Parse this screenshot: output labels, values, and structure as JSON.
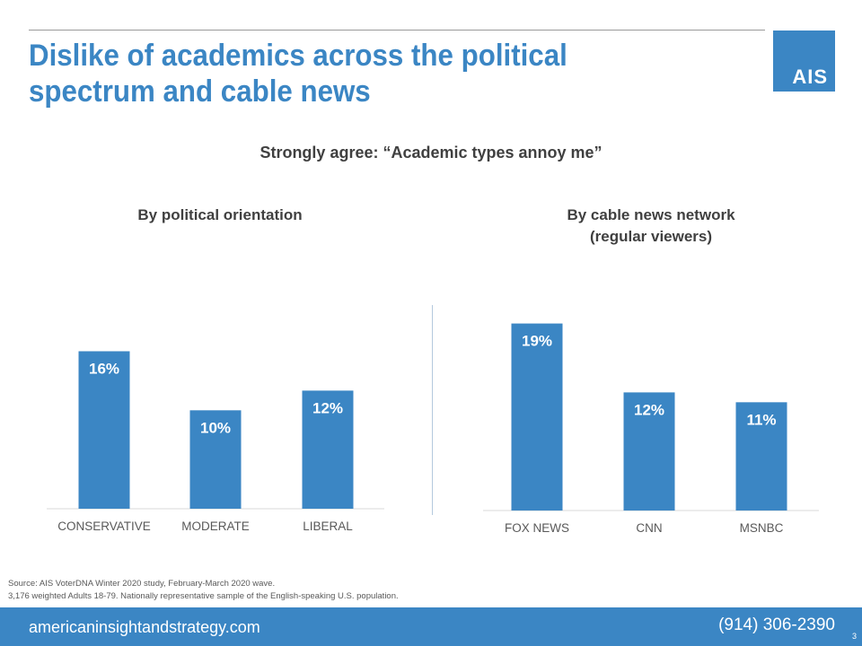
{
  "header": {
    "title_line1": "Dislike of academics across the political",
    "title_line2": "spectrum and cable news",
    "logo_text": "AIS"
  },
  "colors": {
    "accent": "#3b86c4",
    "text": "#404040",
    "axis": "#d9d9d9"
  },
  "chart_data": {
    "title": "Strongly agree: “Academic types annoy me”",
    "charts": [
      {
        "type": "bar",
        "title_line1": "By political orientation",
        "title_line2": "",
        "categories": [
          "CONSERVATIVE",
          "MODERATE",
          "LIBERAL"
        ],
        "values": [
          16,
          10,
          12
        ],
        "labels": [
          "16%",
          "10%",
          "12%"
        ],
        "ylim": [
          0,
          24
        ]
      },
      {
        "type": "bar",
        "title_line1": "By cable news network",
        "title_line2": "(regular viewers)",
        "categories": [
          "FOX NEWS",
          "CNN",
          "MSNBC"
        ],
        "values": [
          19,
          12,
          11
        ],
        "labels": [
          "19%",
          "12%",
          "11%"
        ],
        "ylim": [
          0,
          24
        ]
      }
    ]
  },
  "source": {
    "line1": "Source: AIS VoterDNA Winter 2020 study, February-March 2020 wave.",
    "line2": "3,176 weighted Adults 18-79. Nationally representative sample of the English-speaking U.S. population."
  },
  "footer": {
    "website": "americaninsightandstrategy.com",
    "phone": "(914) 306-2390",
    "page_number": "3"
  }
}
